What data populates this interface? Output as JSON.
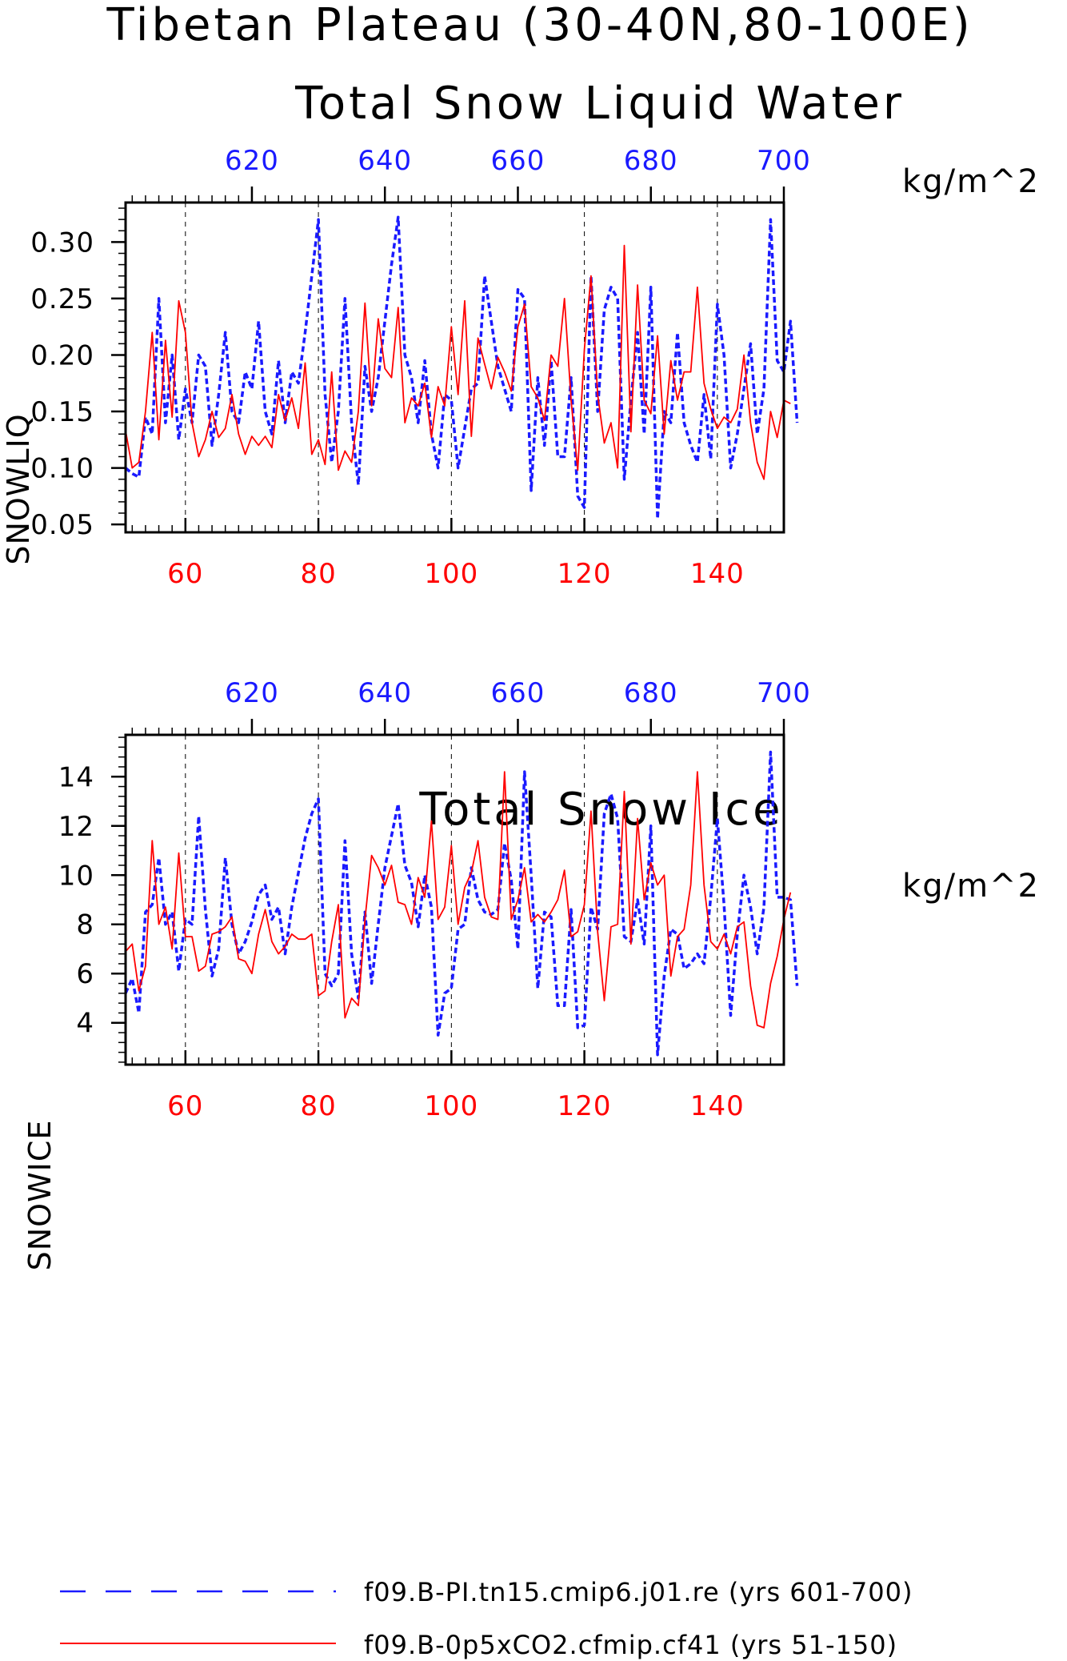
{
  "page_title_line1": "Tibetan Plateau (30-40N,80-100E)",
  "legend": [
    {
      "label": "f09.B-PI.tn15.cmip6.j01.re (yrs 601-700)",
      "color": "#1a1aff",
      "dash": true
    },
    {
      "label": "f09.B-0p5xCO2.cfmip.cf41 (yrs 51-150)",
      "color": "#ff0000",
      "dash": false
    }
  ],
  "chart_data": [
    {
      "type": "line",
      "title": "Total Snow Liquid Water",
      "ylabel": "SNOWLIQ",
      "units": "kg/m^2",
      "ylim": [
        0.043,
        0.335
      ],
      "yticks": [
        0.05,
        0.1,
        0.15,
        0.2,
        0.25,
        0.3
      ],
      "ytick_labels": [
        "0.05",
        "0.10",
        "0.15",
        "0.20",
        "0.25",
        "0.30"
      ],
      "x_bottom": {
        "range": [
          51,
          150
        ],
        "ticks": [
          60,
          80,
          100,
          120,
          140
        ],
        "color": "#ff0000"
      },
      "x_top": {
        "range": [
          601,
          700
        ],
        "ticks": [
          620,
          640,
          660,
          680,
          700
        ],
        "color": "#1a1aff"
      },
      "grid": "dashed vertical lines at major x ticks",
      "series": [
        {
          "name": "f09.B-PI.tn15.cmip6.j01.re (yrs 601-700)",
          "axis": "top",
          "color": "#1a1aff",
          "style": "dashed",
          "x_start": 601,
          "values": [
            0.1,
            0.095,
            0.092,
            0.145,
            0.13,
            0.25,
            0.14,
            0.2,
            0.125,
            0.17,
            0.14,
            0.2,
            0.19,
            0.12,
            0.165,
            0.22,
            0.15,
            0.14,
            0.185,
            0.17,
            0.23,
            0.15,
            0.13,
            0.195,
            0.14,
            0.185,
            0.175,
            0.22,
            0.27,
            0.32,
            0.165,
            0.105,
            0.15,
            0.25,
            0.14,
            0.085,
            0.19,
            0.15,
            0.18,
            0.23,
            0.28,
            0.322,
            0.2,
            0.18,
            0.14,
            0.195,
            0.13,
            0.1,
            0.165,
            0.16,
            0.1,
            0.135,
            0.17,
            0.175,
            0.27,
            0.23,
            0.19,
            0.17,
            0.15,
            0.258,
            0.25,
            0.08,
            0.18,
            0.12,
            0.195,
            0.11,
            0.11,
            0.18,
            0.075,
            0.065,
            0.27,
            0.15,
            0.24,
            0.26,
            0.25,
            0.09,
            0.16,
            0.22,
            0.13,
            0.26,
            0.055,
            0.15,
            0.14,
            0.22,
            0.14,
            0.12,
            0.105,
            0.165,
            0.108,
            0.245,
            0.2,
            0.1,
            0.13,
            0.17,
            0.21,
            0.13,
            0.17,
            0.32,
            0.195,
            0.185,
            0.23,
            0.14
          ]
        },
        {
          "name": "f09.B-0p5xCO2.cfmip.cf41 (yrs 51-150)",
          "axis": "bottom",
          "color": "#ff0000",
          "style": "solid",
          "x_start": 51,
          "values": [
            0.133,
            0.1,
            0.105,
            0.15,
            0.22,
            0.125,
            0.213,
            0.145,
            0.248,
            0.22,
            0.14,
            0.11,
            0.125,
            0.15,
            0.127,
            0.135,
            0.165,
            0.13,
            0.112,
            0.128,
            0.12,
            0.128,
            0.118,
            0.165,
            0.142,
            0.162,
            0.135,
            0.193,
            0.112,
            0.125,
            0.103,
            0.185,
            0.098,
            0.115,
            0.105,
            0.15,
            0.246,
            0.155,
            0.232,
            0.188,
            0.18,
            0.242,
            0.14,
            0.162,
            0.155,
            0.175,
            0.127,
            0.172,
            0.155,
            0.225,
            0.165,
            0.248,
            0.128,
            0.215,
            0.192,
            0.17,
            0.198,
            0.185,
            0.168,
            0.225,
            0.245,
            0.172,
            0.162,
            0.142,
            0.2,
            0.19,
            0.25,
            0.16,
            0.098,
            0.205,
            0.27,
            0.165,
            0.122,
            0.14,
            0.1,
            0.297,
            0.132,
            0.262,
            0.16,
            0.148,
            0.217,
            0.13,
            0.195,
            0.16,
            0.185,
            0.185,
            0.26,
            0.175,
            0.152,
            0.135,
            0.145,
            0.14,
            0.152,
            0.2,
            0.14,
            0.105,
            0.09,
            0.15,
            0.127,
            0.16,
            0.157
          ]
        }
      ]
    },
    {
      "type": "line",
      "title": "Total Snow Ice",
      "ylabel": "SNOWICE",
      "units": "kg/m^2",
      "ylim": [
        2.3,
        15.7
      ],
      "yticks": [
        4,
        6,
        8,
        10,
        12,
        14
      ],
      "ytick_labels": [
        "4",
        "6",
        "8",
        "10",
        "12",
        "14"
      ],
      "x_bottom": {
        "range": [
          51,
          150
        ],
        "ticks": [
          60,
          80,
          100,
          120,
          140
        ],
        "color": "#ff0000"
      },
      "x_top": {
        "range": [
          601,
          700
        ],
        "ticks": [
          620,
          640,
          660,
          680,
          700
        ],
        "color": "#1a1aff"
      },
      "grid": "dashed vertical lines at major x ticks",
      "series": [
        {
          "name": "f09.B-PI.tn15.cmip6.j01.re (yrs 601-700)",
          "axis": "top",
          "color": "#1a1aff",
          "style": "dashed",
          "x_start": 601,
          "values": [
            5.2,
            5.8,
            4.4,
            8.5,
            8.8,
            10.7,
            8.0,
            8.5,
            6.1,
            8.2,
            8.0,
            12.4,
            8.6,
            5.9,
            7.0,
            10.7,
            8.0,
            6.8,
            7.3,
            8.1,
            9.2,
            9.6,
            8.2,
            8.7,
            6.8,
            8.7,
            10.1,
            11.5,
            12.5,
            13.1,
            6.0,
            5.5,
            6.0,
            11.4,
            6.8,
            5.0,
            8.5,
            5.6,
            8.0,
            10.3,
            11.6,
            12.9,
            10.4,
            9.7,
            7.9,
            10.0,
            8.7,
            3.5,
            5.2,
            5.4,
            7.8,
            8.0,
            10.3,
            9.0,
            8.5,
            8.4,
            8.6,
            11.3,
            9.8,
            7.0,
            14.2,
            10.0,
            5.4,
            8.5,
            8.3,
            4.7,
            4.7,
            8.6,
            3.8,
            3.9,
            8.7,
            7.8,
            12.5,
            13.3,
            12.3,
            7.5,
            7.3,
            9.0,
            7.2,
            12.0,
            2.7,
            5.9,
            7.8,
            7.6,
            6.2,
            6.4,
            6.8,
            6.4,
            9.1,
            12.3,
            8.8,
            4.3,
            7.6,
            10.0,
            8.7,
            6.8,
            8.7,
            15.0,
            9.1,
            9.1,
            9.0,
            5.5
          ]
        },
        {
          "name": "f09.B-0p5xCO2.cfmip.cf41 (yrs 51-150)",
          "axis": "bottom",
          "color": "#ff0000",
          "style": "solid",
          "x_start": 51,
          "values": [
            6.9,
            7.2,
            5.3,
            6.3,
            11.4,
            8.0,
            8.7,
            7.0,
            10.9,
            7.5,
            7.5,
            6.1,
            6.3,
            7.6,
            7.7,
            7.9,
            8.3,
            6.6,
            6.5,
            6.0,
            7.6,
            8.6,
            7.3,
            6.8,
            7.1,
            7.6,
            7.4,
            7.4,
            7.6,
            5.1,
            5.3,
            7.3,
            8.8,
            4.2,
            5.0,
            4.7,
            8.2,
            10.8,
            10.3,
            9.6,
            10.4,
            8.9,
            8.8,
            8.0,
            9.9,
            9.1,
            12.2,
            8.2,
            8.7,
            11.2,
            8.0,
            9.5,
            10.1,
            11.4,
            9.1,
            8.3,
            8.2,
            14.2,
            8.2,
            9.0,
            10.3,
            8.1,
            8.4,
            8.1,
            8.5,
            9.0,
            10.2,
            7.5,
            7.7,
            8.8,
            12.6,
            7.7,
            4.9,
            7.9,
            8.0,
            13.4,
            7.2,
            12.3,
            9.0,
            10.5,
            9.6,
            10.0,
            5.9,
            7.5,
            7.8,
            9.6,
            14.2,
            9.6,
            7.3,
            7.0,
            7.6,
            6.8,
            7.9,
            8.1,
            5.5,
            3.9,
            3.8,
            5.6,
            6.7,
            8.2,
            9.3
          ]
        }
      ]
    }
  ]
}
